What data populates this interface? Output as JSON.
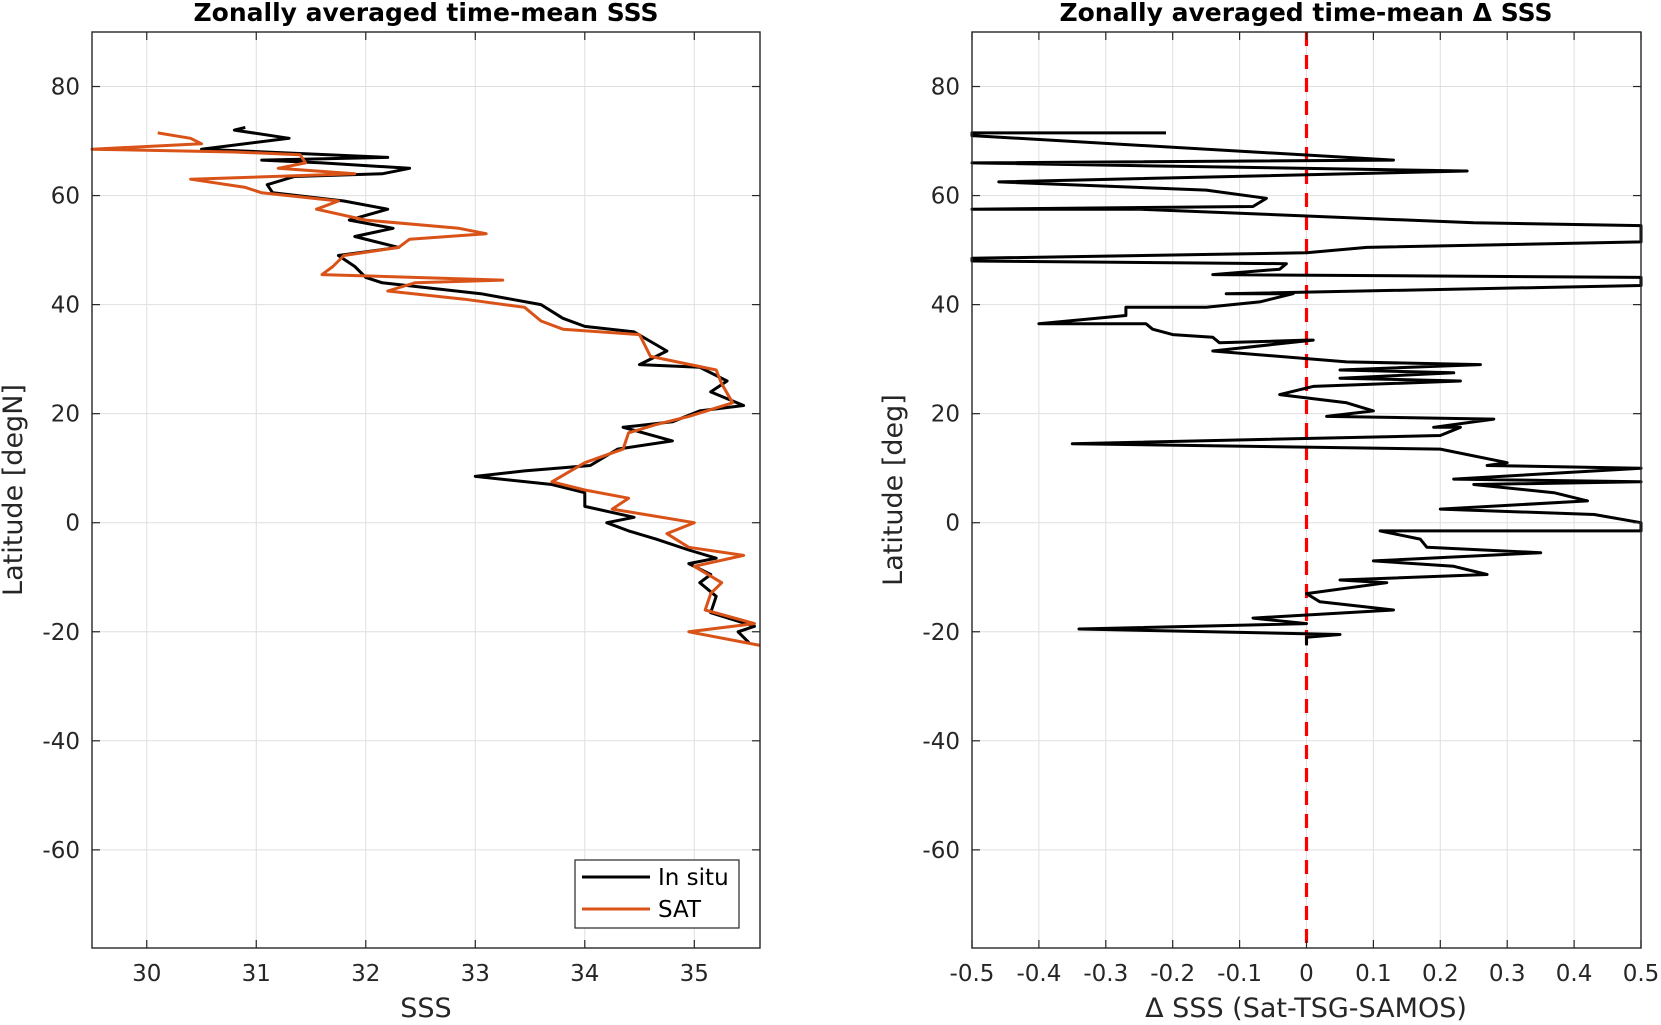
{
  "chart_data": [
    {
      "type": "line",
      "title": "Zonally averaged time-mean SSS",
      "xlabel": "SSS",
      "ylabel": "Latitude [degN]",
      "xlim": [
        29.5,
        35.6
      ],
      "ylim": [
        -78,
        90
      ],
      "xticks": [
        30,
        31,
        32,
        33,
        34,
        35
      ],
      "yticks": [
        -60,
        -40,
        -20,
        0,
        20,
        40,
        60,
        80
      ],
      "grid": true,
      "legend": "bottom-right",
      "series": [
        {
          "name": "In situ",
          "color": "#000000",
          "points": [
            [
              30.9,
              72.5
            ],
            [
              30.8,
              72
            ],
            [
              31.3,
              70.5
            ],
            [
              30.5,
              68.5
            ],
            [
              32.2,
              67
            ],
            [
              31.05,
              66.5
            ],
            [
              31.6,
              66
            ],
            [
              32.4,
              65
            ],
            [
              32.15,
              64
            ],
            [
              31.35,
              63.5
            ],
            [
              31.1,
              62
            ],
            [
              31.15,
              60.5
            ],
            [
              31.8,
              59
            ],
            [
              32.2,
              57.5
            ],
            [
              31.85,
              55.5
            ],
            [
              32.25,
              54
            ],
            [
              31.9,
              52.5
            ],
            [
              32.3,
              50.5
            ],
            [
              31.75,
              49
            ],
            [
              31.9,
              47
            ],
            [
              32.0,
              45
            ],
            [
              32.15,
              44
            ],
            [
              33.05,
              42
            ],
            [
              33.6,
              40
            ],
            [
              33.8,
              37.5
            ],
            [
              34.0,
              36
            ],
            [
              34.45,
              35
            ],
            [
              34.75,
              31.5
            ],
            [
              34.5,
              29
            ],
            [
              35.05,
              28.5
            ],
            [
              35.3,
              26
            ],
            [
              35.15,
              24
            ],
            [
              35.45,
              21.5
            ],
            [
              35.05,
              20.5
            ],
            [
              34.8,
              18.5
            ],
            [
              34.35,
              17.5
            ],
            [
              34.8,
              15
            ],
            [
              34.3,
              13.5
            ],
            [
              34.05,
              10.5
            ],
            [
              33.45,
              9.5
            ],
            [
              33.0,
              8.5
            ],
            [
              33.7,
              7
            ],
            [
              34.0,
              5.5
            ],
            [
              34.0,
              3
            ],
            [
              34.45,
              1
            ],
            [
              34.2,
              0
            ],
            [
              34.4,
              -1.5
            ],
            [
              34.65,
              -3
            ],
            [
              34.95,
              -5
            ],
            [
              35.2,
              -6.5
            ],
            [
              34.95,
              -7.5
            ],
            [
              35.15,
              -9.5
            ],
            [
              35.05,
              -11
            ],
            [
              35.2,
              -13.5
            ],
            [
              35.15,
              -16.5
            ],
            [
              35.55,
              -19
            ],
            [
              35.4,
              -20
            ],
            [
              35.5,
              -22
            ]
          ]
        },
        {
          "name": "SAT",
          "color": "#d95319",
          "points": [
            [
              30.1,
              71.5
            ],
            [
              30.4,
              70.5
            ],
            [
              30.5,
              69.5
            ],
            [
              29.5,
              68.5
            ],
            [
              30.8,
              68
            ],
            [
              31.4,
              67.5
            ],
            [
              31.45,
              66
            ],
            [
              31.2,
              65
            ],
            [
              31.9,
              64
            ],
            [
              30.4,
              63
            ],
            [
              30.9,
              61.5
            ],
            [
              31.05,
              60.5
            ],
            [
              31.75,
              59
            ],
            [
              31.55,
              57.5
            ],
            [
              32.0,
              55.5
            ],
            [
              32.85,
              54
            ],
            [
              33.1,
              53
            ],
            [
              32.4,
              52
            ],
            [
              32.3,
              50.5
            ],
            [
              31.8,
              49
            ],
            [
              31.7,
              47
            ],
            [
              31.6,
              45.5
            ],
            [
              33.25,
              44.5
            ],
            [
              32.45,
              44
            ],
            [
              32.2,
              42.5
            ],
            [
              32.9,
              41
            ],
            [
              33.45,
              39.5
            ],
            [
              33.6,
              37
            ],
            [
              33.8,
              35.5
            ],
            [
              34.5,
              34.5
            ],
            [
              34.6,
              30.5
            ],
            [
              35.2,
              28
            ],
            [
              35.25,
              25.5
            ],
            [
              35.35,
              22
            ],
            [
              34.95,
              19.5
            ],
            [
              34.65,
              18
            ],
            [
              34.4,
              16.5
            ],
            [
              34.35,
              13.5
            ],
            [
              34.0,
              11
            ],
            [
              33.7,
              7.5
            ],
            [
              34.0,
              6
            ],
            [
              34.4,
              4.5
            ],
            [
              34.25,
              2.5
            ],
            [
              34.55,
              1.5
            ],
            [
              35.0,
              0
            ],
            [
              34.75,
              -2
            ],
            [
              34.95,
              -4.5
            ],
            [
              35.45,
              -6
            ],
            [
              35.0,
              -8
            ],
            [
              35.25,
              -11
            ],
            [
              35.15,
              -13
            ],
            [
              35.1,
              -16
            ],
            [
              35.55,
              -18.5
            ],
            [
              34.95,
              -20
            ],
            [
              35.6,
              -22.5
            ]
          ]
        }
      ]
    },
    {
      "type": "line",
      "title": "Zonally averaged time-mean Δ SSS",
      "xlabel": "Δ SSS (Sat-TSG-SAMOS)",
      "ylabel": "Latitude [deg]",
      "xlim": [
        -0.5,
        0.5
      ],
      "ylim": [
        -78,
        90
      ],
      "xticks": [
        -0.5,
        -0.4,
        -0.3,
        -0.2,
        -0.1,
        0,
        0.1,
        0.2,
        0.3,
        0.4,
        0.5
      ],
      "yticks": [
        -60,
        -40,
        -20,
        0,
        20,
        40,
        60,
        80
      ],
      "grid": true,
      "reference_line": {
        "x": 0,
        "color": "#ff0000",
        "style": "dashed"
      },
      "series": [
        {
          "color": "#000000",
          "points": [
            [
              -0.21,
              71.5
            ],
            [
              -0.5,
              71.5
            ],
            [
              -0.5,
              71
            ],
            [
              0.13,
              66.5
            ],
            [
              -0.5,
              66
            ],
            [
              0.24,
              64.5
            ],
            [
              -0.46,
              62.5
            ],
            [
              -0.15,
              61
            ],
            [
              -0.06,
              59.5
            ],
            [
              -0.08,
              58
            ],
            [
              -0.5,
              57.5
            ],
            [
              -0.25,
              57.5
            ],
            [
              0.25,
              55
            ],
            [
              0.5,
              54.5
            ],
            [
              0.5,
              51.5
            ],
            [
              0.09,
              50.5
            ],
            [
              0.0,
              49.5
            ],
            [
              -0.5,
              48.5
            ],
            [
              -0.5,
              48
            ],
            [
              -0.03,
              47.5
            ],
            [
              -0.04,
              46.5
            ],
            [
              -0.14,
              45.5
            ],
            [
              0.5,
              45
            ],
            [
              0.5,
              43.5
            ],
            [
              -0.12,
              42
            ],
            [
              -0.02,
              42
            ],
            [
              -0.07,
              40.5
            ],
            [
              -0.15,
              39.5
            ],
            [
              -0.27,
              39.5
            ],
            [
              -0.27,
              38
            ],
            [
              -0.4,
              36.5
            ],
            [
              -0.24,
              36.5
            ],
            [
              -0.23,
              35.5
            ],
            [
              -0.2,
              34.5
            ],
            [
              -0.14,
              34
            ],
            [
              -0.13,
              33
            ],
            [
              0.0,
              33.5
            ],
            [
              0.01,
              33.5
            ],
            [
              -0.14,
              31.5
            ],
            [
              0.06,
              29.5
            ],
            [
              0.26,
              29
            ],
            [
              0.05,
              28
            ],
            [
              0.22,
              27.5
            ],
            [
              0.05,
              26.5
            ],
            [
              0.23,
              26
            ],
            [
              0.01,
              25
            ],
            [
              -0.04,
              23.5
            ],
            [
              0.06,
              22
            ],
            [
              0.1,
              20.5
            ],
            [
              0.03,
              19.5
            ],
            [
              0.28,
              19
            ],
            [
              0.19,
              17.5
            ],
            [
              0.23,
              17.5
            ],
            [
              0.2,
              16
            ],
            [
              -0.35,
              14.5
            ],
            [
              0.2,
              13.5
            ],
            [
              0.3,
              11
            ],
            [
              0.27,
              10.5
            ],
            [
              0.5,
              10
            ],
            [
              0.22,
              8
            ],
            [
              0.5,
              7.5
            ],
            [
              0.25,
              7
            ],
            [
              0.37,
              5.5
            ],
            [
              0.42,
              4
            ],
            [
              0.2,
              2.5
            ],
            [
              0.43,
              1.5
            ],
            [
              0.5,
              0
            ],
            [
              0.5,
              -1.5
            ],
            [
              0.11,
              -1.5
            ],
            [
              0.17,
              -3
            ],
            [
              0.18,
              -4.5
            ],
            [
              0.35,
              -5.5
            ],
            [
              0.1,
              -7
            ],
            [
              0.22,
              -8
            ],
            [
              0.27,
              -9.5
            ],
            [
              0.05,
              -10.5
            ],
            [
              0.12,
              -11
            ],
            [
              0.0,
              -13
            ],
            [
              0.02,
              -14.5
            ],
            [
              0.13,
              -16
            ],
            [
              -0.08,
              -17.5
            ],
            [
              0.0,
              -18.5
            ],
            [
              -0.34,
              -19.5
            ],
            [
              0.05,
              -20.5
            ],
            [
              0.0,
              -21
            ],
            [
              0.0,
              -22.5
            ]
          ]
        }
      ]
    }
  ]
}
